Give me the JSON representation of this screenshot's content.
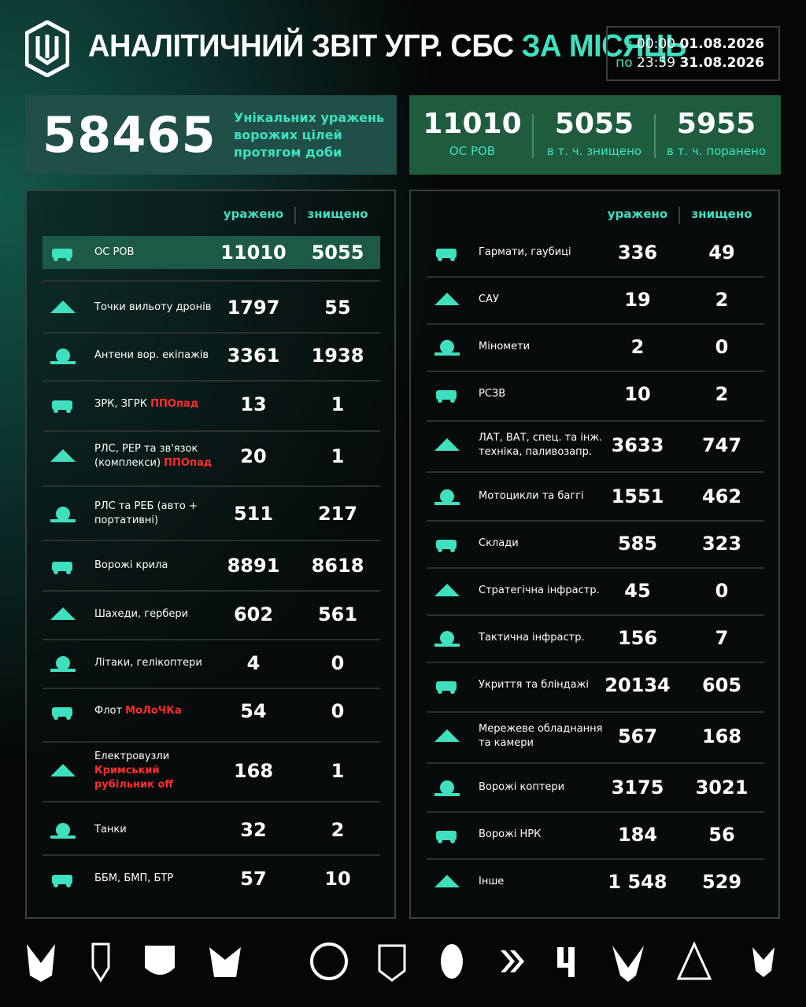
{
  "header": {
    "title": "АНАЛІТИЧНИЙ ЗВІТ УГР. СБС",
    "title_accent": "ЗА МІСЯЦЬ",
    "period": [
      {
        "prefix": "з",
        "time": "00:00",
        "date": "01.08.2026"
      },
      {
        "prefix": "по",
        "time": "23:59",
        "date": "31.08.2026"
      }
    ]
  },
  "summary": {
    "total": 58465,
    "caption": [
      "Унікальних уражень",
      "ворожих цілей",
      "протягом доби"
    ],
    "stats": [
      {
        "value": 11010,
        "label": "ОС РОВ"
      },
      {
        "value": 5055,
        "label": "в т. ч. знищено"
      },
      {
        "value": 5955,
        "label": "в т. ч. поранено"
      }
    ]
  },
  "left_table": {
    "columns": [
      "уражено",
      "знищено"
    ],
    "rows": [
      {
        "label": [
          "ОС РОВ"
        ],
        "hit": 11010,
        "destroyed": 5055
      },
      {
        "label": [
          "Точки вильоту дронів"
        ],
        "hit": 1797,
        "destroyed": 55
      },
      {
        "label": [
          "Антени вор. екіпажів"
        ],
        "hit": 3361,
        "destroyed": 1938
      },
      {
        "label": [
          "ЗРК, ЗГРК"
        ],
        "tag": "ППОпад",
        "hit": 13,
        "destroyed": 1
      },
      {
        "label": [
          "РЛС, РЕР та зв'язок",
          "(комплекси)"
        ],
        "tag": "ППОпад",
        "hit": 20,
        "destroyed": 1
      },
      {
        "label": [
          "РЛС та РЕБ (авто +",
          "портативні)"
        ],
        "hit": 511,
        "destroyed": 217
      },
      {
        "label": [
          "Ворожі крила"
        ],
        "hit": 8891,
        "destroyed": 8618
      },
      {
        "label": [
          "Шахеди, гербери"
        ],
        "hit": 602,
        "destroyed": 561
      },
      {
        "label": [
          "Літаки, гелікоптери"
        ],
        "hit": 4,
        "destroyed": 0
      },
      {
        "label": [
          "Флот"
        ],
        "tag": "МоЛоЧКа",
        "hit": 54,
        "destroyed": 0
      },
      {
        "label": [
          "Електровузли"
        ],
        "tag": "Кримський рубільник off",
        "hit": 168,
        "destroyed": 1
      },
      {
        "label": [
          "Танки"
        ],
        "hit": 32,
        "destroyed": 2
      },
      {
        "label": [
          "ББМ, БМП, БТР"
        ],
        "hit": 57,
        "destroyed": 10
      }
    ]
  },
  "right_table": {
    "columns": [
      "уражено",
      "знищено"
    ],
    "rows": [
      {
        "label": [
          "Гармати, гаубиці"
        ],
        "hit": 336,
        "destroyed": 49
      },
      {
        "label": [
          "САУ"
        ],
        "hit": 19,
        "destroyed": 2
      },
      {
        "label": [
          "Міномети"
        ],
        "hit": 2,
        "destroyed": 0
      },
      {
        "label": [
          "РСЗВ"
        ],
        "hit": 10,
        "destroyed": 2
      },
      {
        "label": [
          "ЛАТ, ВАТ, спец. та інж.",
          "техніка, паливозапр."
        ],
        "hit": 3633,
        "destroyed": 747
      },
      {
        "label": [
          "Мотоцикли та баггі"
        ],
        "hit": 1551,
        "destroyed": 462
      },
      {
        "label": [
          "Склади"
        ],
        "hit": 585,
        "destroyed": 323
      },
      {
        "label": [
          "Стратегічна інфрастр."
        ],
        "hit": 45,
        "destroyed": 0
      },
      {
        "label": [
          "Тактична інфрастр."
        ],
        "hit": 156,
        "destroyed": 7
      },
      {
        "label": [
          "Укриття та бліндажі"
        ],
        "hit": 20134,
        "destroyed": 605
      },
      {
        "label": [
          "Мережеве обладнання",
          "та камери"
        ],
        "hit": 567,
        "destroyed": 168
      },
      {
        "label": [
          "Ворожі коптери"
        ],
        "hit": 3175,
        "destroyed": 3021
      },
      {
        "label": [
          "Ворожі НРК"
        ],
        "hit": 184,
        "destroyed": 56
      },
      {
        "label": [
          "Інше"
        ],
        "hit": "1 548",
        "destroyed": 529
      }
    ]
  }
}
